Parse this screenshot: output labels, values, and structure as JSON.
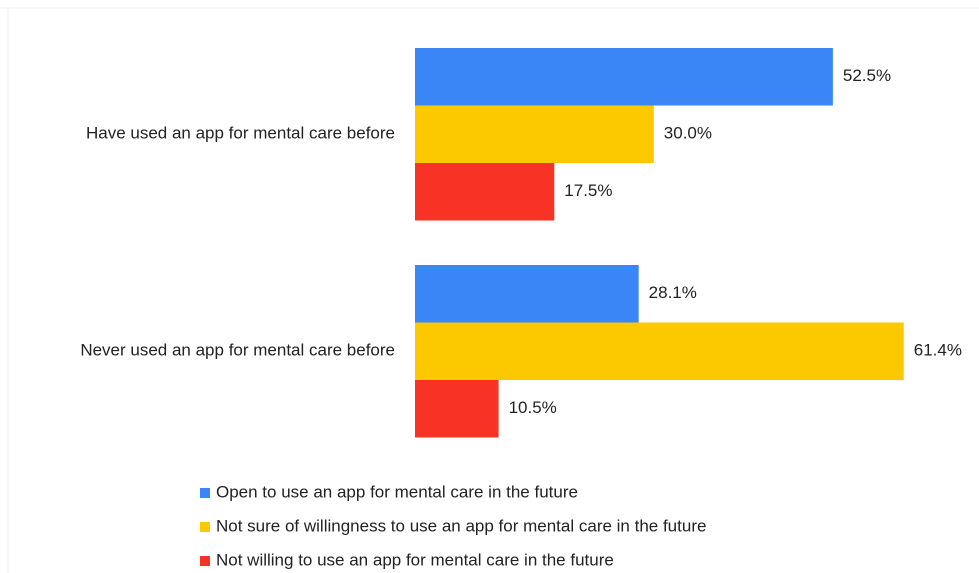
{
  "chart_data": {
    "type": "bar",
    "orientation": "horizontal",
    "categories": [
      "Have used an app for mental care before",
      "Never used an app for mental care before"
    ],
    "series": [
      {
        "name": "Open to use an app for mental care in the future",
        "color": "#3a86f7",
        "values": [
          52.5,
          28.1
        ],
        "value_labels": [
          "52.5%",
          "28.1%"
        ]
      },
      {
        "name": "Not sure of willingness to use an app for mental care in the future",
        "color": "#fcc800",
        "values": [
          30.0,
          61.4
        ],
        "value_labels": [
          "30.0%",
          "61.4%"
        ]
      },
      {
        "name": "Not willing to use an app for mental care in the future",
        "color": "#f83224",
        "values": [
          17.5,
          10.5
        ],
        "value_labels": [
          "17.5%",
          "10.5%"
        ]
      }
    ]
  }
}
